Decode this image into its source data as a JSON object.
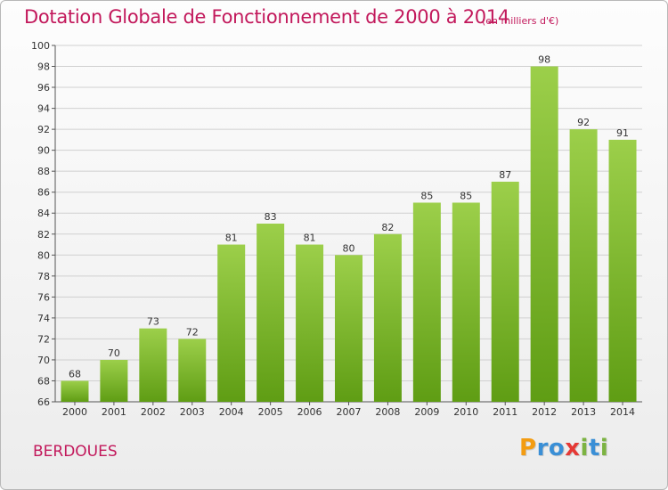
{
  "title": "Dotation Globale de Fonctionnement de 2000 à 2014",
  "subtitle": "(en milliers d'€)",
  "place": "BERDOUES",
  "logo": {
    "text": "Proxiti",
    "letters": [
      {
        "char": "P",
        "color": "#f39c12"
      },
      {
        "char": "r",
        "color": "#3a8fd6"
      },
      {
        "char": "o",
        "color": "#3a8fd6"
      },
      {
        "char": "x",
        "color": "#e53935"
      },
      {
        "char": "i",
        "color": "#7cb342"
      },
      {
        "char": "t",
        "color": "#3a8fd6"
      },
      {
        "char": "i",
        "color": "#7cb342"
      }
    ]
  },
  "colors": {
    "title": "#c2185b",
    "bar_light": "#9ccf4a",
    "bar_dark": "#5f9d14",
    "grid": "#d0d0d0"
  },
  "chart_data": {
    "type": "bar",
    "categories": [
      "2000",
      "2001",
      "2002",
      "2003",
      "2004",
      "2005",
      "2006",
      "2007",
      "2008",
      "2009",
      "2010",
      "2011",
      "2012",
      "2013",
      "2014"
    ],
    "values": [
      68,
      70,
      73,
      72,
      81,
      83,
      81,
      80,
      82,
      85,
      85,
      87,
      98,
      92,
      91
    ],
    "title": "Dotation Globale de Fonctionnement de 2000 à 2014",
    "subtitle": "(en milliers d'€)",
    "xlabel": "",
    "ylabel": "",
    "ylim": [
      66,
      100
    ],
    "yticks": [
      66,
      68,
      70,
      72,
      74,
      76,
      78,
      80,
      82,
      84,
      86,
      88,
      90,
      92,
      94,
      96,
      98,
      100
    ],
    "grid": true,
    "data_labels": true
  }
}
